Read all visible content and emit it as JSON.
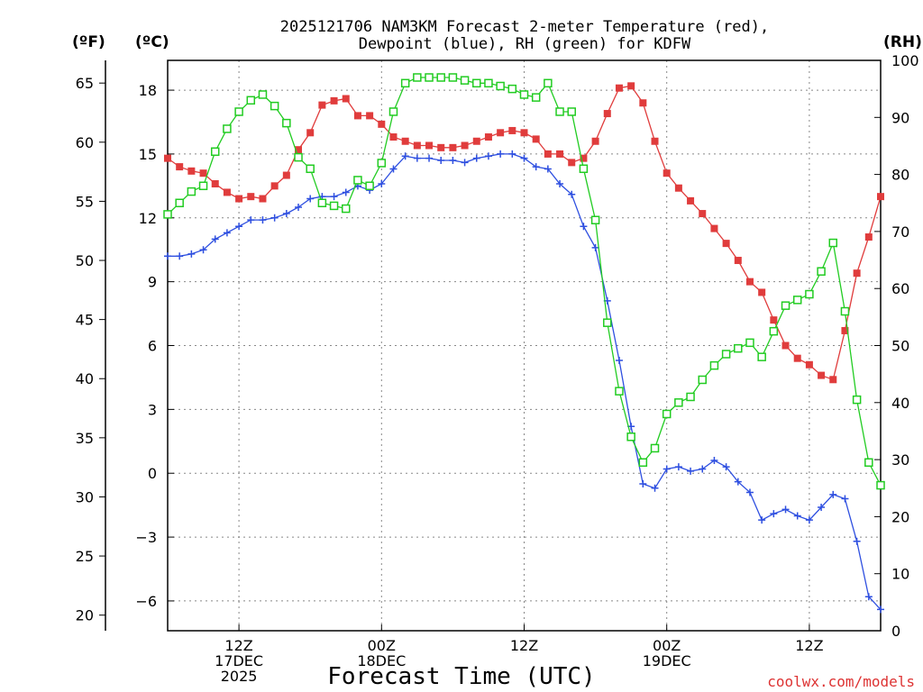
{
  "chart_data": {
    "type": "line",
    "title_line1": "2025121706 NAM3KM Forecast 2-meter Temperature (red),",
    "title_line2": "Dewpoint (blue), RH (green) for KDFW",
    "xlabel": "Forecast Time (UTC)",
    "credit": "coolwx.com/models",
    "units": {
      "fahrenheit": "(ºF)",
      "celsius": "(ºC)",
      "rh": "(RH)"
    },
    "axes": {
      "celsius": {
        "min": -7.4,
        "max": 19.4,
        "ticks": [
          18,
          15,
          12,
          9,
          6,
          3,
          0,
          -3,
          -6
        ],
        "tick_labels": [
          "18",
          "15",
          "12",
          "9",
          "6",
          "3",
          "0",
          "−3",
          "−6"
        ]
      },
      "fahrenheit": {
        "ticks": [
          65,
          60,
          55,
          50,
          45,
          40,
          35,
          30,
          25,
          20
        ],
        "tick_labels": [
          "65",
          "60",
          "55",
          "50",
          "45",
          "40",
          "35",
          "30",
          "25",
          "20"
        ]
      },
      "rh": {
        "min": 0,
        "max": 100,
        "ticks": [
          100,
          90,
          80,
          70,
          60,
          50,
          40,
          30,
          20,
          10,
          0
        ],
        "tick_labels": [
          "100",
          "90",
          "80",
          "70",
          "60",
          "50",
          "40",
          "30",
          "20",
          "10",
          "0"
        ]
      },
      "x": {
        "start_hour": 6,
        "end_hour": 66,
        "gridlines": [
          12,
          24,
          36,
          48,
          60
        ]
      }
    },
    "x_ticks": [
      {
        "hour": 12,
        "lines": [
          "12Z",
          "17DEC",
          "2025"
        ]
      },
      {
        "hour": 24,
        "lines": [
          "00Z",
          "18DEC"
        ]
      },
      {
        "hour": 36,
        "lines": [
          "12Z"
        ]
      },
      {
        "hour": 48,
        "lines": [
          "00Z",
          "19DEC"
        ]
      },
      {
        "hour": 60,
        "lines": [
          "12Z"
        ]
      }
    ],
    "colors": {
      "temperature": "#e03c3c",
      "dewpoint": "#2e4fe0",
      "rh": "#22cc22"
    },
    "series": [
      {
        "name": "Temperature",
        "units": "C",
        "marker": "filled-square",
        "x": [
          6,
          7,
          8,
          9,
          10,
          11,
          12,
          13,
          14,
          15,
          16,
          17,
          18,
          19,
          20,
          21,
          22,
          23,
          24,
          25,
          26,
          27,
          28,
          29,
          30,
          31,
          32,
          33,
          34,
          35,
          36,
          37,
          38,
          39,
          40,
          41,
          42,
          43,
          44,
          45,
          46,
          47,
          48,
          49,
          50,
          51,
          52,
          53,
          54,
          55,
          56,
          57,
          58,
          59,
          60,
          61,
          62,
          63,
          64,
          65,
          66
        ],
        "values": [
          14.8,
          14.4,
          14.2,
          14.1,
          13.6,
          13.2,
          12.9,
          13.0,
          12.9,
          13.5,
          14.0,
          15.2,
          16.0,
          17.3,
          17.5,
          17.6,
          16.8,
          16.8,
          16.4,
          15.8,
          15.6,
          15.4,
          15.4,
          15.3,
          15.3,
          15.4,
          15.6,
          15.8,
          16.0,
          16.1,
          16.0,
          15.7,
          15.0,
          15.0,
          14.6,
          14.8,
          15.6,
          16.9,
          18.1,
          18.2,
          17.4,
          15.6,
          14.1,
          13.4,
          12.8,
          12.2,
          11.5,
          10.8,
          10.0,
          9.0,
          8.5,
          7.2,
          6.0,
          5.4,
          5.1,
          4.6,
          4.4,
          6.7,
          9.4,
          11.1,
          13.0
        ]
      },
      {
        "name": "Dewpoint",
        "units": "C",
        "marker": "plus",
        "x": [
          6,
          7,
          8,
          9,
          10,
          11,
          12,
          13,
          14,
          15,
          16,
          17,
          18,
          19,
          20,
          21,
          22,
          23,
          24,
          25,
          26,
          27,
          28,
          29,
          30,
          31,
          32,
          33,
          34,
          35,
          36,
          37,
          38,
          39,
          40,
          41,
          42,
          43,
          44,
          45,
          46,
          47,
          48,
          49,
          50,
          51,
          52,
          53,
          54,
          55,
          56,
          57,
          58,
          59,
          60,
          61,
          62,
          63,
          64,
          65,
          66
        ],
        "values": [
          10.2,
          10.2,
          10.3,
          10.5,
          11.0,
          11.3,
          11.6,
          11.9,
          11.9,
          12.0,
          12.2,
          12.5,
          12.9,
          13.0,
          13.0,
          13.2,
          13.5,
          13.3,
          13.6,
          14.3,
          14.9,
          14.8,
          14.8,
          14.7,
          14.7,
          14.6,
          14.8,
          14.9,
          15.0,
          15.0,
          14.8,
          14.4,
          14.3,
          13.6,
          13.1,
          11.6,
          10.6,
          8.1,
          5.3,
          2.2,
          -0.5,
          -0.7,
          0.2,
          0.3,
          0.1,
          0.2,
          0.6,
          0.3,
          -0.4,
          -0.9,
          -2.2,
          -1.9,
          -1.7,
          -2.0,
          -2.2,
          -1.6,
          -1.0,
          -1.2,
          -3.2,
          -5.8,
          -6.4
        ]
      },
      {
        "name": "RH",
        "units": "%",
        "marker": "open-square",
        "x": [
          6,
          7,
          8,
          9,
          10,
          11,
          12,
          13,
          14,
          15,
          16,
          17,
          18,
          19,
          20,
          21,
          22,
          23,
          24,
          25,
          26,
          27,
          28,
          29,
          30,
          31,
          32,
          33,
          34,
          35,
          36,
          37,
          38,
          39,
          40,
          41,
          42,
          43,
          44,
          45,
          46,
          47,
          48,
          49,
          50,
          51,
          52,
          53,
          54,
          55,
          56,
          57,
          58,
          59,
          60,
          61,
          62,
          63,
          64,
          65,
          66
        ],
        "values": [
          73,
          75,
          77,
          78,
          84,
          88,
          91,
          93,
          94,
          92,
          89,
          83,
          81,
          75,
          74.5,
          74,
          79,
          78,
          82,
          91,
          96,
          97,
          97,
          97,
          97,
          96.5,
          96,
          96,
          95.5,
          95,
          94,
          93.5,
          96,
          91,
          91,
          81,
          72,
          54,
          42,
          34,
          29.5,
          32,
          38,
          40,
          41,
          44,
          46.5,
          48.5,
          49.5,
          50.5,
          48,
          52.5,
          57,
          58,
          59,
          63,
          68,
          56,
          40.5,
          29.5,
          25.5
        ]
      }
    ]
  }
}
